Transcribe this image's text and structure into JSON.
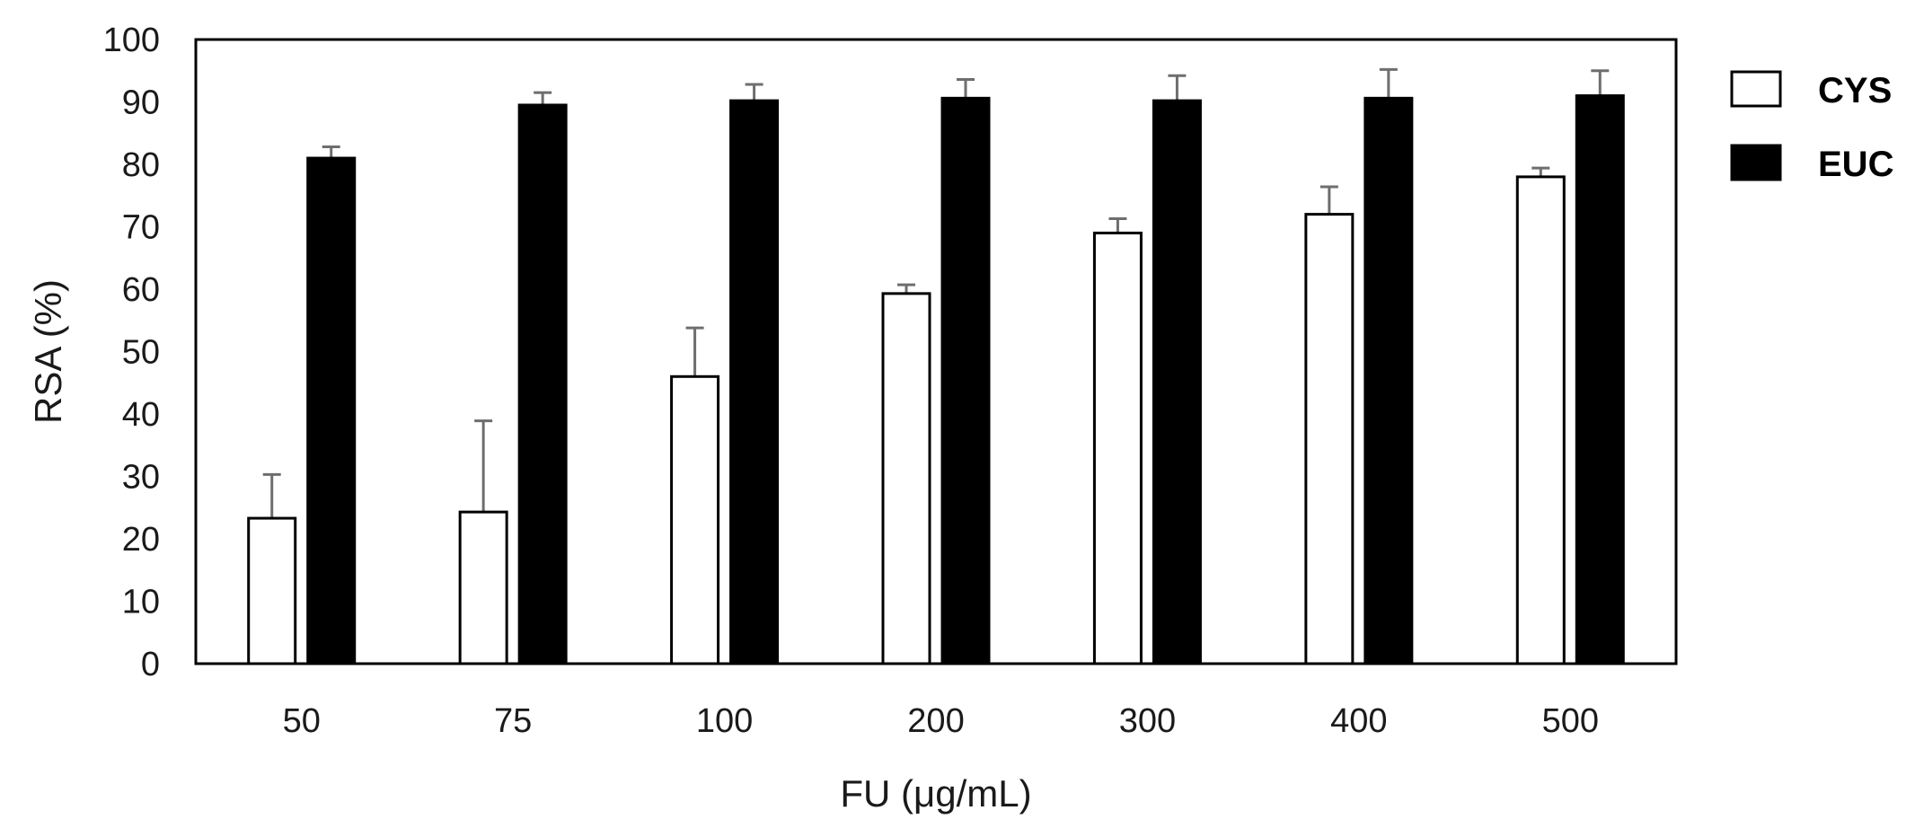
{
  "chart_data": {
    "type": "bar",
    "title": "",
    "xlabel": "FU (μg/mL)",
    "ylabel": "RSA (%)",
    "ylim": [
      0,
      100
    ],
    "yticks": [
      0,
      10,
      20,
      30,
      40,
      50,
      60,
      70,
      80,
      90,
      100
    ],
    "categories": [
      "50",
      "75",
      "100",
      "200",
      "300",
      "400",
      "500"
    ],
    "series": [
      {
        "name": "CYS",
        "fill": "#ffffff",
        "values": [
          23.3,
          24.3,
          46.0,
          59.3,
          69.0,
          72.0,
          78.0
        ],
        "error_upper": [
          7.0,
          14.6,
          7.8,
          1.4,
          2.3,
          4.4,
          1.4
        ]
      },
      {
        "name": "EUC",
        "fill": "#000000",
        "values": [
          81.0,
          89.5,
          90.2,
          90.6,
          90.2,
          90.6,
          91.0
        ],
        "error_upper": [
          1.8,
          2.0,
          2.6,
          3.0,
          4.0,
          4.6,
          4.0
        ]
      }
    ],
    "grid": false,
    "legend_position": "top-right"
  }
}
